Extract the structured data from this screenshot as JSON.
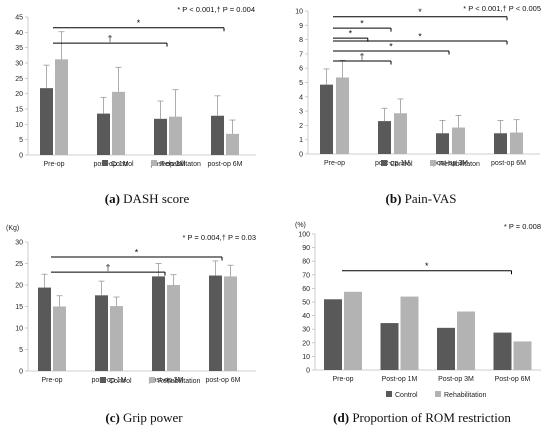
{
  "colors": {
    "control": "#595959",
    "rehab": "#b3b3b3",
    "axis": "#bfbfbf",
    "line": "#000000"
  },
  "chart_data": [
    {
      "type": "bar",
      "caption_letter": "(a)",
      "caption_text": "DASH score",
      "note": "* P < 0.001,† P = 0.004",
      "unit": "",
      "categories": [
        "Pre-op",
        "post-op 1M",
        "post-op 3M",
        "post-op 6M"
      ],
      "ylim": [
        0,
        45
      ],
      "yticks": [
        0,
        5,
        10,
        15,
        20,
        25,
        30,
        35,
        40,
        45
      ],
      "grid": false,
      "legend_position": "bottom",
      "series": [
        {
          "name": "Control",
          "values": [
            21.8,
            13.5,
            11.8,
            12.8
          ],
          "errors": [
            7.5,
            5.3,
            5.8,
            6.5
          ]
        },
        {
          "name": "Rehabilitaton",
          "values": [
            31.2,
            20.6,
            12.5,
            6.9
          ],
          "errors": [
            9.0,
            8.0,
            8.8,
            4.5
          ]
        }
      ],
      "annotations": [
        {
          "symbol": "*",
          "from": 0,
          "to": 3,
          "y": 41.5
        },
        {
          "symbol": "†",
          "from": 0,
          "to": 2,
          "y": 36.5
        }
      ]
    },
    {
      "type": "bar",
      "caption_letter": "(b)",
      "caption_text": "Pain-VAS",
      "note": "* P < 0.001,† P < 0.005",
      "unit": "",
      "categories": [
        "Pre-op",
        "post-op 1M",
        "post-op 3M",
        "post-op 6M"
      ],
      "ylim": [
        0,
        10
      ],
      "yticks": [
        0,
        1,
        2,
        3,
        4,
        5,
        6,
        7,
        8,
        9,
        10
      ],
      "grid": false,
      "legend_position": "bottom",
      "series": [
        {
          "name": "Control",
          "values": [
            4.85,
            2.3,
            1.45,
            1.45
          ],
          "errors": [
            1.1,
            0.9,
            0.9,
            0.9
          ]
        },
        {
          "name": "Rehabilitaton",
          "values": [
            5.35,
            2.85,
            1.85,
            1.5
          ],
          "errors": [
            1.2,
            1.0,
            0.85,
            0.9
          ]
        }
      ],
      "annotations": [
        {
          "symbol": "*",
          "from": 0,
          "to": 3,
          "y": 9.6
        },
        {
          "symbol": "*",
          "from": 0,
          "to": 1,
          "y": 8.8
        },
        {
          "symbol": "*",
          "from": 0,
          "to": 0.6,
          "y": 8.1
        },
        {
          "symbol": "*",
          "from": 0,
          "to": 3,
          "y": 7.9
        },
        {
          "symbol": "*",
          "from": 0,
          "to": 2,
          "y": 7.2
        },
        {
          "symbol": "†",
          "from": 0,
          "to": 1,
          "y": 6.5
        }
      ]
    },
    {
      "type": "bar",
      "caption_letter": "(c)",
      "caption_text": "Grip power",
      "note": "* P = 0.004,† P = 0.03",
      "unit": "(Kg)",
      "categories": [
        "Pre-op",
        "post-op 1M",
        "post-op 3M",
        "post-op 6M"
      ],
      "ylim": [
        0,
        30
      ],
      "yticks": [
        0,
        5,
        10,
        15,
        20,
        25,
        30
      ],
      "grid": false,
      "legend_position": "bottom",
      "series": [
        {
          "name": "Control",
          "values": [
            19.4,
            17.6,
            22.0,
            22.2
          ],
          "errors": [
            3.1,
            3.3,
            3.0,
            3.4
          ]
        },
        {
          "name": "Rehabilitation",
          "values": [
            15.0,
            15.1,
            20.0,
            22.0
          ],
          "errors": [
            2.5,
            2.1,
            2.4,
            2.6
          ]
        }
      ],
      "annotations": [
        {
          "symbol": "*",
          "from": 0,
          "to": 3,
          "y": 26.5
        },
        {
          "symbol": "†",
          "from": 0,
          "to": 2,
          "y": 23.0
        }
      ]
    },
    {
      "type": "bar",
      "caption_letter": "(d)",
      "caption_text": "Proportion of ROM restriction",
      "note": "* P = 0.008",
      "unit": "(%)",
      "categories": [
        "Pre-op",
        "Post-op 1M",
        "Post-op 3M",
        "Post-op 6M"
      ],
      "ylim": [
        0,
        100
      ],
      "yticks": [
        0,
        10,
        20,
        30,
        40,
        50,
        60,
        70,
        80,
        90,
        100
      ],
      "grid": false,
      "legend_position": "bottom",
      "series": [
        {
          "name": "Control",
          "values": [
            52,
            34.5,
            31,
            27.5
          ],
          "errors": [
            0,
            0,
            0,
            0
          ]
        },
        {
          "name": "Rehabilitation",
          "values": [
            57.5,
            54,
            43,
            21
          ],
          "errors": [
            0,
            0,
            0,
            0
          ]
        }
      ],
      "annotations": [
        {
          "symbol": "*",
          "from": 0,
          "to": 3,
          "y": 73
        }
      ]
    }
  ]
}
